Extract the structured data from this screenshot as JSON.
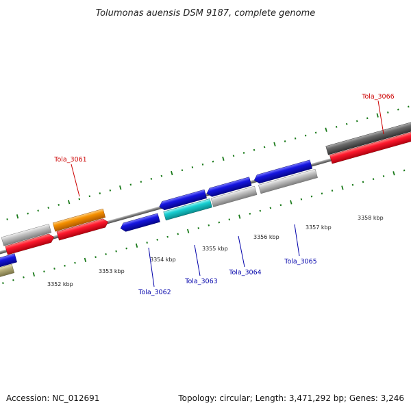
{
  "title": "Tolumonas auensis DSM 9187, complete genome",
  "footer": {
    "accession": "Accession: NC_012691",
    "summary": "Topology: circular; Length: 3,471,292 bp; Genes: 3,246"
  },
  "colors": {
    "red": "#e8001c",
    "blue": "#1010d8",
    "orange": "#f08a00",
    "cyan": "#10c8cc",
    "gray": "#bdbdbd",
    "darkgray": "#6a6a6a",
    "olive": "#b8b07a",
    "tick": "#1a7a1a",
    "label_red": "#cc0000",
    "label_blue": "#0000aa"
  },
  "ticks": [
    {
      "label": "3352 kbp"
    },
    {
      "label": "3353 kbp"
    },
    {
      "label": "3354 kbp"
    },
    {
      "label": "3355 kbp"
    },
    {
      "label": "3356 kbp"
    },
    {
      "label": "3357 kbp"
    },
    {
      "label": "3358 kbp"
    }
  ],
  "labels": [
    {
      "text": "Tola_3061",
      "color": "red"
    },
    {
      "text": "Tola_3062",
      "color": "blue"
    },
    {
      "text": "Tola_3063",
      "color": "blue"
    },
    {
      "text": "Tola_3064",
      "color": "blue"
    },
    {
      "text": "Tola_3065",
      "color": "blue"
    },
    {
      "text": "Tola_3066",
      "color": "red"
    }
  ]
}
